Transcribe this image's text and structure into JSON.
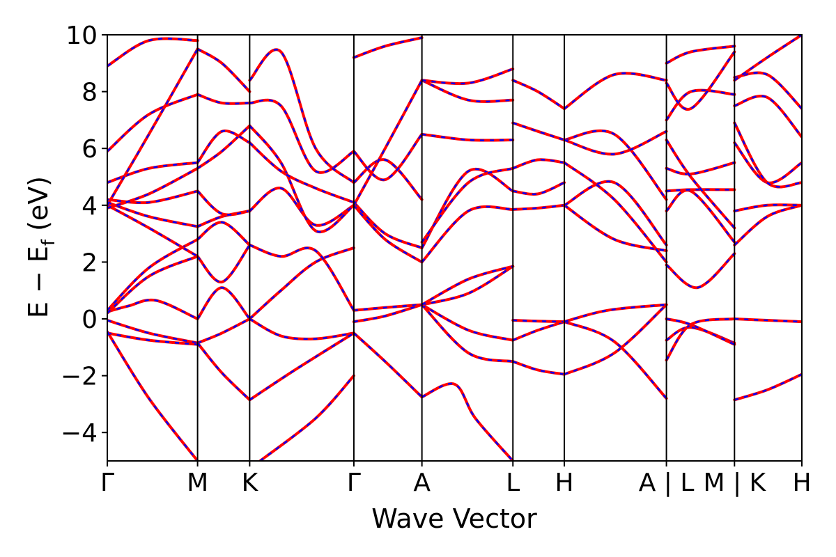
{
  "chart_data": {
    "type": "line",
    "xlabel": "Wave Vector",
    "ylabel": "E − E",
    "ylabel_sub": "f",
    "ylabel_unit": " (eV)",
    "ylim": [
      -5,
      10
    ],
    "yticks": [
      -4,
      -2,
      0,
      2,
      4,
      6,
      8,
      10
    ],
    "ytick_labels": [
      "−4",
      "−2",
      "0",
      "2",
      "4",
      "6",
      "8",
      "10"
    ],
    "xlim": [
      0,
      1
    ],
    "kpath": [
      {
        "label": "Γ",
        "x": 0.0
      },
      {
        "label": "M",
        "x": 0.13
      },
      {
        "label": "K",
        "x": 0.205
      },
      {
        "label": "Γ",
        "x": 0.355
      },
      {
        "label": "A",
        "x": 0.453
      },
      {
        "label": "L",
        "x": 0.584
      },
      {
        "label": "H",
        "x": 0.658
      },
      {
        "label": "A | L",
        "x": 0.805
      },
      {
        "label": "M | K",
        "x": 0.903
      },
      {
        "label": "H",
        "x": 1.0
      }
    ],
    "line_colors": {
      "solid": "#ff0000",
      "dashed": "#0000ff"
    },
    "bands": [
      {
        "x": [
          0,
          0.03,
          0.07,
          0.13
        ],
        "y": [
          0.25,
          0.45,
          0.65,
          0.0
        ]
      },
      {
        "x": [
          0.13,
          0.165,
          0.205
        ],
        "y": [
          0.0,
          1.1,
          0.0
        ]
      },
      {
        "x": [
          0.205,
          0.25,
          0.3,
          0.355
        ],
        "y": [
          0.0,
          1.0,
          2.0,
          2.5
        ]
      },
      {
        "x": [
          0,
          0.06,
          0.13
        ],
        "y": [
          -0.05,
          -0.5,
          -0.85
        ]
      },
      {
        "x": [
          0,
          0.06,
          0.13
        ],
        "y": [
          -0.5,
          -0.75,
          -0.9
        ]
      },
      {
        "x": [
          0,
          0.06,
          0.13
        ],
        "y": [
          -0.45,
          -2.8,
          -5.0
        ]
      },
      {
        "x": [
          0.13,
          0.165,
          0.205
        ],
        "y": [
          -0.85,
          -0.5,
          0.0
        ]
      },
      {
        "x": [
          0.205,
          0.25,
          0.3,
          0.355
        ],
        "y": [
          0.0,
          -0.6,
          -0.7,
          -0.5
        ]
      },
      {
        "x": [
          0.13,
          0.165,
          0.205
        ],
        "y": [
          -0.85,
          -1.9,
          -2.85
        ]
      },
      {
        "x": [
          0.205,
          0.27,
          0.355
        ],
        "y": [
          -2.85,
          -1.8,
          -0.5
        ]
      },
      {
        "x": [
          0.355,
          0.4,
          0.453
        ],
        "y": [
          -0.5,
          -1.5,
          -2.75
        ]
      },
      {
        "x": [
          0.453,
          0.5,
          0.53,
          0.584
        ],
        "y": [
          -2.75,
          -2.3,
          -3.5,
          -5.0
        ]
      },
      {
        "x": [
          0.22,
          0.3,
          0.355
        ],
        "y": [
          -5.0,
          -3.5,
          -2.0
        ]
      },
      {
        "x": [
          0.355,
          0.4,
          0.453
        ],
        "y": [
          0.3,
          0.4,
          0.5
        ]
      },
      {
        "x": [
          0.355,
          0.4,
          0.453
        ],
        "y": [
          -0.1,
          0.1,
          0.5
        ]
      },
      {
        "x": [
          0.453,
          0.52,
          0.584
        ],
        "y": [
          0.5,
          -0.4,
          -0.75
        ]
      },
      {
        "x": [
          0.584,
          0.62,
          0.658
        ],
        "y": [
          -0.75,
          -0.4,
          -0.1
        ]
      },
      {
        "x": [
          0.453,
          0.52,
          0.584
        ],
        "y": [
          0.5,
          -1.2,
          -1.5
        ]
      },
      {
        "x": [
          0.584,
          0.62,
          0.658
        ],
        "y": [
          -1.5,
          -1.8,
          -1.95
        ]
      },
      {
        "x": [
          0.658,
          0.73,
          0.805
        ],
        "y": [
          -1.95,
          -1.2,
          0.5
        ]
      },
      {
        "x": [
          0.658,
          0.73,
          0.805
        ],
        "y": [
          -0.1,
          -0.8,
          -2.8
        ]
      },
      {
        "x": [
          0.453,
          0.52,
          0.584
        ],
        "y": [
          0.5,
          0.9,
          1.85
        ]
      },
      {
        "x": [
          0.453,
          0.52,
          0.584
        ],
        "y": [
          0.5,
          1.4,
          1.85
        ]
      },
      {
        "x": [
          0.584,
          0.62,
          0.658
        ],
        "y": [
          -0.05,
          -0.08,
          -0.1
        ]
      },
      {
        "x": [
          0.658,
          0.72,
          0.805
        ],
        "y": [
          -0.1,
          0.3,
          0.5
        ]
      },
      {
        "x": [
          0.0,
          0.06,
          0.13
        ],
        "y": [
          0.3,
          1.8,
          2.8
        ]
      },
      {
        "x": [
          0.0,
          0.06,
          0.13
        ],
        "y": [
          0.2,
          1.5,
          2.2
        ]
      },
      {
        "x": [
          0.13,
          0.165,
          0.205
        ],
        "y": [
          2.2,
          1.3,
          2.6
        ]
      },
      {
        "x": [
          0.13,
          0.165,
          0.205
        ],
        "y": [
          2.8,
          3.4,
          2.6
        ]
      },
      {
        "x": [
          0.205,
          0.25,
          0.3,
          0.355
        ],
        "y": [
          2.6,
          2.2,
          2.4,
          0.3
        ]
      },
      {
        "x": [
          0.0,
          0.06,
          0.13
        ],
        "y": [
          4.0,
          3.2,
          2.2
        ]
      },
      {
        "x": [
          0.0,
          0.06,
          0.13
        ],
        "y": [
          4.1,
          3.6,
          3.25
        ]
      },
      {
        "x": [
          0.0,
          0.06,
          0.13
        ],
        "y": [
          4.2,
          4.1,
          4.5
        ]
      },
      {
        "x": [
          0.0,
          0.06,
          0.13
        ],
        "y": [
          3.9,
          4.4,
          5.3
        ]
      },
      {
        "x": [
          0.0,
          0.06,
          0.13
        ],
        "y": [
          4.8,
          5.3,
          5.5
        ]
      },
      {
        "x": [
          0.0,
          0.06,
          0.13
        ],
        "y": [
          5.9,
          7.2,
          7.9
        ]
      },
      {
        "x": [
          0.0,
          0.06,
          0.13
        ],
        "y": [
          4.0,
          6.5,
          9.5
        ]
      },
      {
        "x": [
          0.0,
          0.06,
          0.13
        ],
        "y": [
          8.9,
          9.8,
          9.8
        ]
      },
      {
        "x": [
          0.13,
          0.165,
          0.205
        ],
        "y": [
          3.25,
          3.6,
          3.8
        ]
      },
      {
        "x": [
          0.13,
          0.165,
          0.205
        ],
        "y": [
          4.5,
          3.7,
          3.8
        ]
      },
      {
        "x": [
          0.13,
          0.165,
          0.205
        ],
        "y": [
          5.3,
          5.9,
          6.8
        ]
      },
      {
        "x": [
          0.13,
          0.165,
          0.205
        ],
        "y": [
          5.5,
          6.6,
          6.2
        ]
      },
      {
        "x": [
          0.13,
          0.165,
          0.205
        ],
        "y": [
          7.9,
          7.6,
          7.6
        ]
      },
      {
        "x": [
          0.13,
          0.165,
          0.205
        ],
        "y": [
          9.5,
          9.0,
          8.0
        ]
      },
      {
        "x": [
          0.205,
          0.25,
          0.3,
          0.355
        ],
        "y": [
          3.8,
          4.6,
          3.3,
          4.0
        ]
      },
      {
        "x": [
          0.205,
          0.25,
          0.3,
          0.355
        ],
        "y": [
          6.8,
          5.5,
          3.1,
          4.0
        ]
      },
      {
        "x": [
          0.205,
          0.25,
          0.3,
          0.355
        ],
        "y": [
          6.2,
          5.2,
          4.6,
          4.1
        ]
      },
      {
        "x": [
          0.205,
          0.25,
          0.3,
          0.355
        ],
        "y": [
          7.6,
          7.5,
          5.2,
          5.9
        ]
      },
      {
        "x": [
          0.205,
          0.25,
          0.3,
          0.355
        ],
        "y": [
          8.4,
          9.4,
          6.0,
          4.8
        ]
      },
      {
        "x": [
          0.355,
          0.4,
          0.453
        ],
        "y": [
          4.0,
          2.8,
          2.0
        ]
      },
      {
        "x": [
          0.355,
          0.4,
          0.453
        ],
        "y": [
          4.1,
          3.0,
          2.5
        ]
      },
      {
        "x": [
          0.355,
          0.4,
          0.453
        ],
        "y": [
          4.8,
          5.6,
          4.2
        ]
      },
      {
        "x": [
          0.355,
          0.4,
          0.453
        ],
        "y": [
          5.9,
          4.9,
          6.5
        ]
      },
      {
        "x": [
          0.355,
          0.4,
          0.453
        ],
        "y": [
          4.0,
          6.0,
          8.4
        ]
      },
      {
        "x": [
          0.355,
          0.4,
          0.453
        ],
        "y": [
          9.2,
          9.6,
          9.9
        ]
      },
      {
        "x": [
          0.453,
          0.52,
          0.584
        ],
        "y": [
          2.0,
          3.8,
          3.85
        ]
      },
      {
        "x": [
          0.453,
          0.52,
          0.584
        ],
        "y": [
          2.5,
          5.2,
          4.5
        ]
      },
      {
        "x": [
          0.453,
          0.52,
          0.584
        ],
        "y": [
          2.7,
          4.8,
          5.3
        ]
      },
      {
        "x": [
          0.453,
          0.52,
          0.584
        ],
        "y": [
          6.5,
          6.3,
          6.3
        ]
      },
      {
        "x": [
          0.453,
          0.52,
          0.584
        ],
        "y": [
          8.4,
          7.7,
          7.7
        ]
      },
      {
        "x": [
          0.453,
          0.52,
          0.584
        ],
        "y": [
          8.4,
          8.3,
          8.8
        ]
      },
      {
        "x": [
          0.584,
          0.62,
          0.658
        ],
        "y": [
          3.85,
          3.9,
          4.0
        ]
      },
      {
        "x": [
          0.584,
          0.62,
          0.658
        ],
        "y": [
          4.5,
          4.4,
          4.8
        ]
      },
      {
        "x": [
          0.584,
          0.62,
          0.658
        ],
        "y": [
          5.3,
          5.6,
          5.5
        ]
      },
      {
        "x": [
          0.584,
          0.62,
          0.658
        ],
        "y": [
          6.9,
          6.6,
          6.3
        ]
      },
      {
        "x": [
          0.584,
          0.62,
          0.658
        ],
        "y": [
          8.4,
          8.0,
          7.4
        ]
      },
      {
        "x": [
          0.658,
          0.73,
          0.805
        ],
        "y": [
          4.0,
          2.8,
          2.4
        ]
      },
      {
        "x": [
          0.658,
          0.73,
          0.805
        ],
        "y": [
          4.0,
          4.8,
          2.6
        ]
      },
      {
        "x": [
          0.658,
          0.73,
          0.805
        ],
        "y": [
          5.5,
          4.2,
          2.0
        ]
      },
      {
        "x": [
          0.658,
          0.73,
          0.805
        ],
        "y": [
          6.3,
          6.5,
          4.2
        ]
      },
      {
        "x": [
          0.658,
          0.73,
          0.805
        ],
        "y": [
          7.4,
          8.6,
          8.4
        ]
      },
      {
        "x": [
          0.658,
          0.73,
          0.805
        ],
        "y": [
          6.3,
          5.8,
          6.6
        ]
      },
      {
        "x": [
          0.805,
          0.84,
          0.903
        ],
        "y": [
          -0.75,
          -0.3,
          -0.85
        ]
      },
      {
        "x": [
          0.805,
          0.84,
          0.903
        ],
        "y": [
          -1.45,
          -0.2,
          0.0
        ]
      },
      {
        "x": [
          0.805,
          0.84,
          0.903
        ],
        "y": [
          0.0,
          -0.2,
          -0.9
        ]
      },
      {
        "x": [
          0.805,
          0.85,
          0.903
        ],
        "y": [
          1.9,
          1.1,
          2.3
        ]
      },
      {
        "x": [
          0.805,
          0.84,
          0.903
        ],
        "y": [
          3.8,
          4.5,
          2.7
        ]
      },
      {
        "x": [
          0.805,
          0.84,
          0.903
        ],
        "y": [
          4.5,
          4.55,
          4.55
        ]
      },
      {
        "x": [
          0.805,
          0.84,
          0.903
        ],
        "y": [
          5.3,
          5.1,
          5.5
        ]
      },
      {
        "x": [
          0.805,
          0.84,
          0.903
        ],
        "y": [
          6.3,
          5.0,
          3.2
        ]
      },
      {
        "x": [
          0.805,
          0.84,
          0.903
        ],
        "y": [
          7.0,
          8.0,
          7.9
        ]
      },
      {
        "x": [
          0.805,
          0.84,
          0.903
        ],
        "y": [
          8.3,
          7.4,
          9.4
        ]
      },
      {
        "x": [
          0.805,
          0.84,
          0.903
        ],
        "y": [
          9.0,
          9.4,
          9.6
        ]
      },
      {
        "x": [
          0.903,
          0.95,
          1.0
        ],
        "y": [
          0.0,
          -0.05,
          -0.1
        ]
      },
      {
        "x": [
          0.903,
          0.95,
          1.0
        ],
        "y": [
          -2.85,
          -2.5,
          -1.95
        ]
      },
      {
        "x": [
          0.903,
          0.95,
          1.0
        ],
        "y": [
          2.6,
          3.6,
          4.0
        ]
      },
      {
        "x": [
          0.903,
          0.95,
          1.0
        ],
        "y": [
          3.8,
          4.0,
          4.0
        ]
      },
      {
        "x": [
          0.903,
          0.95,
          1.0
        ],
        "y": [
          6.2,
          4.8,
          5.5
        ]
      },
      {
        "x": [
          0.903,
          0.95,
          1.0
        ],
        "y": [
          6.9,
          4.8,
          4.8
        ]
      },
      {
        "x": [
          0.903,
          0.95,
          1.0
        ],
        "y": [
          7.5,
          7.8,
          6.4
        ]
      },
      {
        "x": [
          0.903,
          0.95,
          1.0
        ],
        "y": [
          8.5,
          8.6,
          7.4
        ]
      },
      {
        "x": [
          0.903,
          0.95,
          1.0
        ],
        "y": [
          8.4,
          9.2,
          10.0
        ]
      }
    ]
  }
}
